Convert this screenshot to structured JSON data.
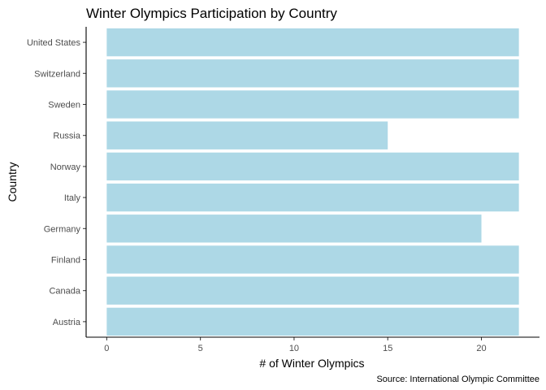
{
  "chart_data": {
    "type": "bar",
    "orientation": "horizontal",
    "title": "Winter Olympics Participation by Country",
    "xlabel": "# of Winter Olympics",
    "ylabel": "Country",
    "caption": "Source: International Olympic Committee",
    "categories": [
      "Austria",
      "Canada",
      "Finland",
      "Germany",
      "Italy",
      "Norway",
      "Russia",
      "Sweden",
      "Switzerland",
      "United States"
    ],
    "values": [
      22,
      22,
      22,
      20,
      22,
      22,
      15,
      22,
      22,
      22
    ],
    "xlim": [
      -1.1,
      23.1
    ],
    "xticks": [
      0,
      5,
      10,
      15,
      20
    ],
    "bar_color": "#add8e6",
    "grid": false
  }
}
